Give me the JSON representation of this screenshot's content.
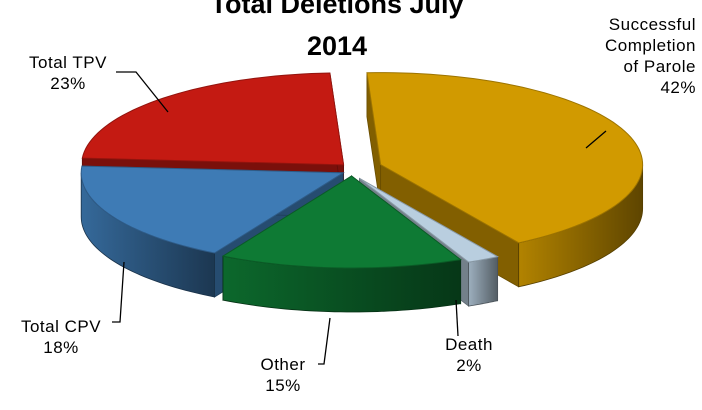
{
  "chart_data": {
    "type": "pie",
    "title_line1": "Total Deletions July",
    "title_line2": "2014",
    "slices": [
      {
        "label": "Successful Completion of Parole",
        "label_lines": [
          "Successful",
          "Completion",
          "of Parole"
        ],
        "pct_label": "42%",
        "value": 42,
        "color": "#D19A00"
      },
      {
        "label": "Death",
        "label_lines": [
          "Death"
        ],
        "pct_label": "2%",
        "value": 2,
        "color": "#B9CEDF"
      },
      {
        "label": "Other",
        "label_lines": [
          "Other"
        ],
        "pct_label": "15%",
        "value": 15,
        "color": "#0E7A34"
      },
      {
        "label": "Total CPV",
        "label_lines": [
          "Total CPV"
        ],
        "pct_label": "18%",
        "value": 18,
        "color": "#3E7BB5"
      },
      {
        "label": "Total TPV",
        "label_lines": [
          "Total TPV"
        ],
        "pct_label": "23%",
        "value": 23,
        "color": "#C41A12"
      }
    ]
  }
}
